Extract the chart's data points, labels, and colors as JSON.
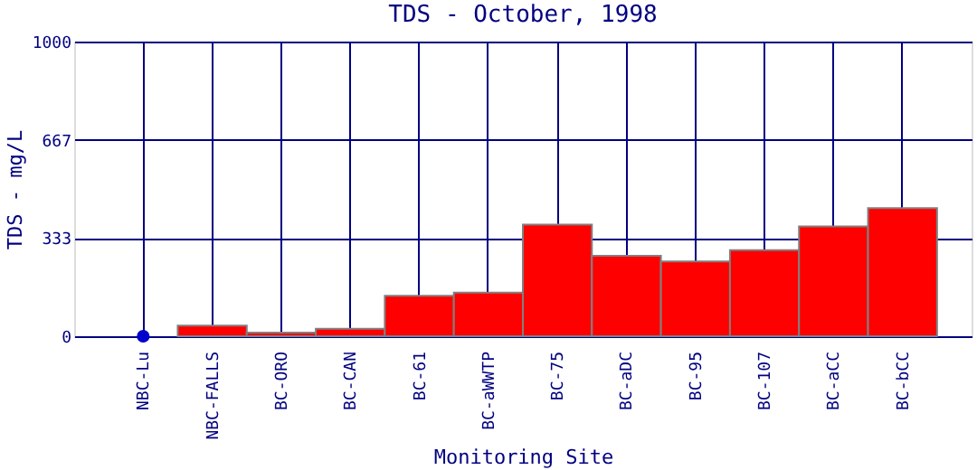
{
  "chart_data": {
    "type": "bar",
    "title": "TDS - October, 1998",
    "xlabel": "Monitoring Site",
    "ylabel": "TDS - mg/L",
    "categories": [
      "NBC-Lu",
      "NBC-FALLS",
      "BC-ORO",
      "BC-CAN",
      "BC-61",
      "BC-aWWTP",
      "BC-75",
      "BC-aDC",
      "BC-95",
      "BC-107",
      "BC-aCC",
      "BC-bCC"
    ],
    "series": [
      {
        "color": "#ff0000",
        "values": [
          null,
          36,
          12,
          25,
          137,
          148,
          379,
          273,
          254,
          292,
          373,
          435
        ]
      },
      {
        "type": "scatter",
        "color": "#0000cc",
        "values": [
          0,
          null,
          null,
          null,
          null,
          null,
          null,
          null,
          null,
          null,
          null,
          null
        ]
      }
    ],
    "ylim": [
      0,
      1000
    ],
    "yticks": [
      0,
      333,
      667,
      1000
    ],
    "grid": true,
    "legend": false,
    "marker": "circle"
  }
}
